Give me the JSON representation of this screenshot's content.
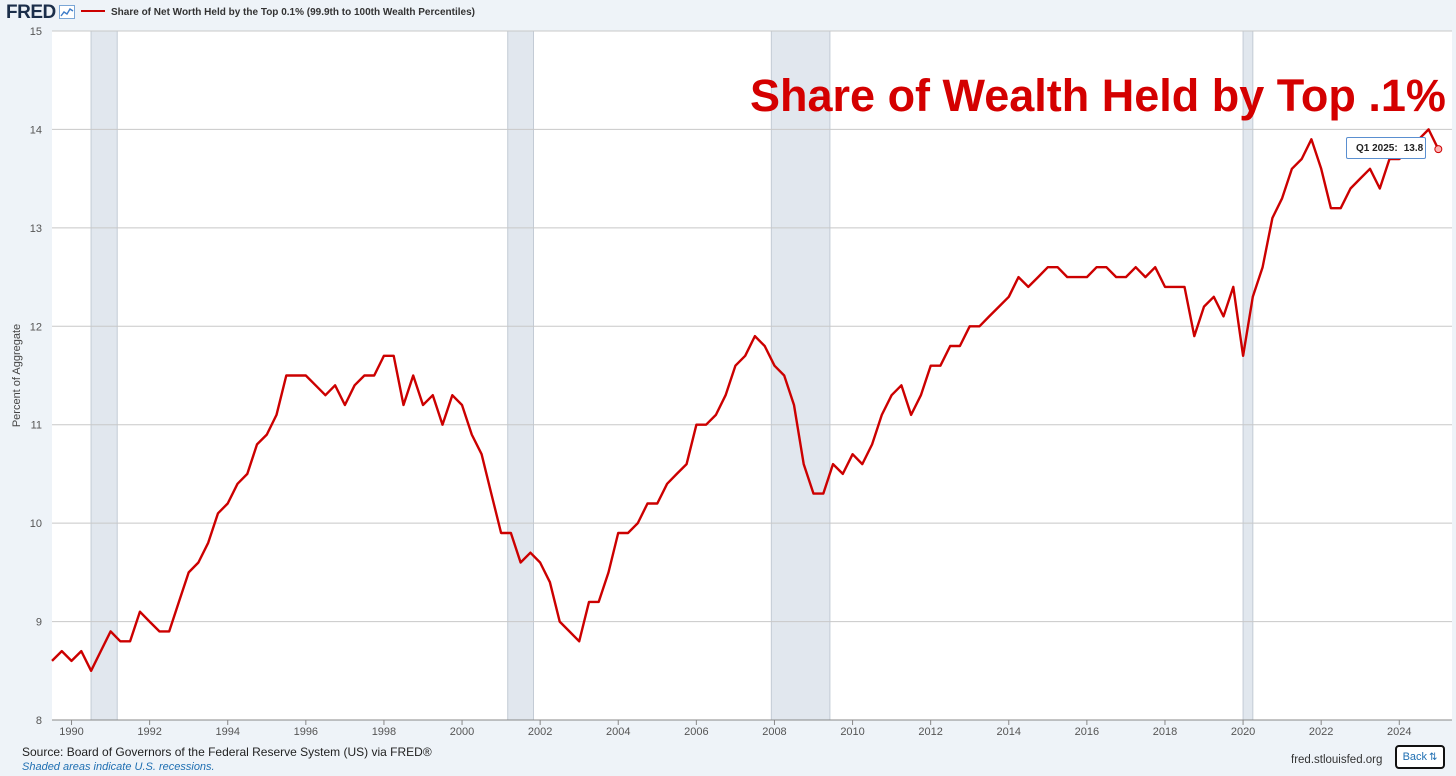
{
  "header": {
    "logo": "FRED",
    "logo_icon": "fred-trend-icon",
    "legend_label": "Share of Net Worth Held by the Top 0.1% (99.9th to 100th Wealth Percentiles)",
    "line_color": "#cc0000"
  },
  "overlay_title": "Share of Wealth Held by Top .1%",
  "tooltip": {
    "label": "Q1 2025:",
    "value": "13.8"
  },
  "footer": {
    "source": "Source: Board of Governors of the Federal Reserve System (US) via FRED®",
    "note": "Shaded areas indicate U.S. recessions.",
    "site": "fred.stlouisfed.org",
    "back_label": "Back"
  },
  "chart_data": {
    "type": "line",
    "ylabel": "Percent of Aggregate",
    "xlabel": "",
    "xlim": [
      1989.5,
      2025.35
    ],
    "ylim": [
      8,
      15
    ],
    "y_ticks": [
      8,
      9,
      10,
      11,
      12,
      13,
      14,
      15
    ],
    "x_ticks": [
      1990,
      1992,
      1994,
      1996,
      1998,
      2000,
      2002,
      2004,
      2006,
      2008,
      2010,
      2012,
      2014,
      2016,
      2018,
      2020,
      2022,
      2024
    ],
    "grid": true,
    "recessions": [
      [
        1990.5,
        1991.17
      ],
      [
        2001.17,
        2001.83
      ],
      [
        2007.92,
        2009.42
      ],
      [
        2020.0,
        2020.25
      ]
    ],
    "series": [
      {
        "name": "Share of Net Worth Held by the Top 0.1% (99.9th to 100th Wealth Percentiles)",
        "color": "#cc0000",
        "x": [
          1989.5,
          1989.75,
          1990.0,
          1990.25,
          1990.5,
          1990.75,
          1991.0,
          1991.25,
          1991.5,
          1991.75,
          1992.0,
          1992.25,
          1992.5,
          1992.75,
          1993.0,
          1993.25,
          1993.5,
          1993.75,
          1994.0,
          1994.25,
          1994.5,
          1994.75,
          1995.0,
          1995.25,
          1995.5,
          1995.75,
          1996.0,
          1996.25,
          1996.5,
          1996.75,
          1997.0,
          1997.25,
          1997.5,
          1997.75,
          1998.0,
          1998.25,
          1998.5,
          1998.75,
          1999.0,
          1999.25,
          1999.5,
          1999.75,
          2000.0,
          2000.25,
          2000.5,
          2000.75,
          2001.0,
          2001.25,
          2001.5,
          2001.75,
          2002.0,
          2002.25,
          2002.5,
          2002.75,
          2003.0,
          2003.25,
          2003.5,
          2003.75,
          2004.0,
          2004.25,
          2004.5,
          2004.75,
          2005.0,
          2005.25,
          2005.5,
          2005.75,
          2006.0,
          2006.25,
          2006.5,
          2006.75,
          2007.0,
          2007.25,
          2007.5,
          2007.75,
          2008.0,
          2008.25,
          2008.5,
          2008.75,
          2009.0,
          2009.25,
          2009.5,
          2009.75,
          2010.0,
          2010.25,
          2010.5,
          2010.75,
          2011.0,
          2011.25,
          2011.5,
          2011.75,
          2012.0,
          2012.25,
          2012.5,
          2012.75,
          2013.0,
          2013.25,
          2013.5,
          2013.75,
          2014.0,
          2014.25,
          2014.5,
          2014.75,
          2015.0,
          2015.25,
          2015.5,
          2015.75,
          2016.0,
          2016.25,
          2016.5,
          2016.75,
          2017.0,
          2017.25,
          2017.5,
          2017.75,
          2018.0,
          2018.25,
          2018.5,
          2018.75,
          2019.0,
          2019.25,
          2019.5,
          2019.75,
          2020.0,
          2020.25,
          2020.5,
          2020.75,
          2021.0,
          2021.25,
          2021.5,
          2021.75,
          2022.0,
          2022.25,
          2022.5,
          2022.75,
          2023.0,
          2023.25,
          2023.5,
          2023.75,
          2024.0,
          2024.25,
          2024.5,
          2024.75,
          2025.0
        ],
        "values": [
          8.6,
          8.7,
          8.6,
          8.7,
          8.5,
          8.7,
          8.9,
          8.8,
          8.8,
          9.1,
          9.0,
          8.9,
          8.9,
          9.2,
          9.5,
          9.6,
          9.8,
          10.1,
          10.2,
          10.4,
          10.5,
          10.8,
          10.9,
          11.1,
          11.5,
          11.5,
          11.5,
          11.4,
          11.3,
          11.4,
          11.2,
          11.4,
          11.5,
          11.5,
          11.7,
          11.7,
          11.2,
          11.5,
          11.2,
          11.3,
          11.0,
          11.3,
          11.2,
          10.9,
          10.7,
          10.3,
          9.9,
          9.9,
          9.6,
          9.7,
          9.6,
          9.4,
          9.0,
          8.9,
          8.8,
          9.2,
          9.2,
          9.5,
          9.9,
          9.9,
          10.0,
          10.2,
          10.2,
          10.4,
          10.5,
          10.6,
          11.0,
          11.0,
          11.1,
          11.3,
          11.6,
          11.7,
          11.9,
          11.8,
          11.6,
          11.5,
          11.2,
          10.6,
          10.3,
          10.3,
          10.6,
          10.5,
          10.7,
          10.6,
          10.8,
          11.1,
          11.3,
          11.4,
          11.1,
          11.3,
          11.6,
          11.6,
          11.8,
          11.8,
          12.0,
          12.0,
          12.1,
          12.2,
          12.3,
          12.5,
          12.4,
          12.5,
          12.6,
          12.6,
          12.5,
          12.5,
          12.5,
          12.6,
          12.6,
          12.5,
          12.5,
          12.6,
          12.5,
          12.6,
          12.4,
          12.4,
          12.4,
          11.9,
          12.2,
          12.3,
          12.1,
          12.4,
          11.7,
          12.3,
          12.6,
          13.1,
          13.3,
          13.6,
          13.7,
          13.9,
          13.6,
          13.2,
          13.2,
          13.4,
          13.5,
          13.6,
          13.4,
          13.7,
          13.7,
          13.8,
          13.9,
          14.0,
          13.8
        ]
      }
    ]
  }
}
